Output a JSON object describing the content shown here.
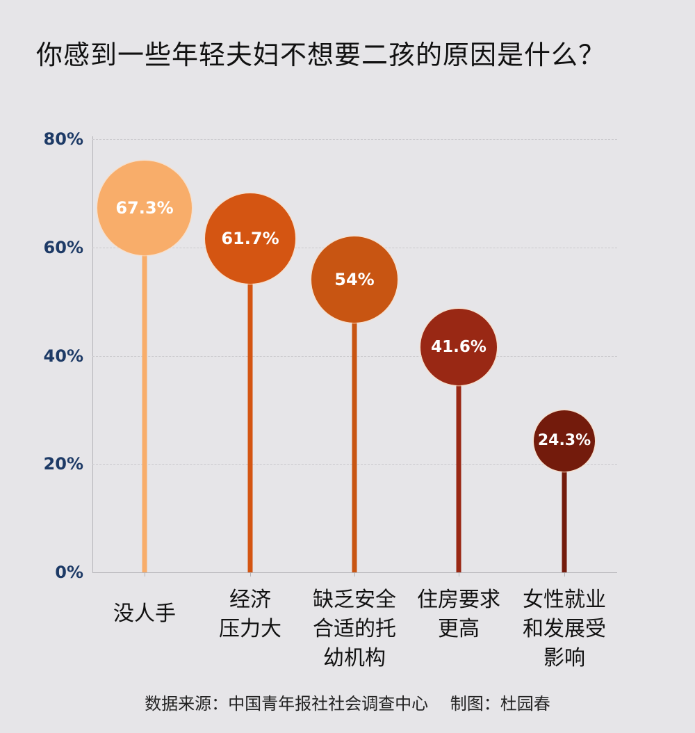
{
  "title": "你感到一些年轻夫妇不想要二孩的原因是什么？",
  "y_axis": {
    "ticks": [
      {
        "label": "80%",
        "value": 80
      },
      {
        "label": "60%",
        "value": 60
      },
      {
        "label": "40%",
        "value": 40
      },
      {
        "label": "20%",
        "value": 20
      },
      {
        "label": "0%",
        "value": 0
      }
    ]
  },
  "items": [
    {
      "label_lines": [
        "没人手"
      ],
      "value_label": "67.3%",
      "value": 67.3,
      "color": "#f8ad6a"
    },
    {
      "label_lines": [
        "经济",
        "压力大"
      ],
      "value_label": "61.7%",
      "value": 61.7,
      "color": "#d45512"
    },
    {
      "label_lines": [
        "缺乏安全",
        "合适的托",
        "幼机构"
      ],
      "value_label": "54%",
      "value": 54,
      "color": "#c85512"
    },
    {
      "label_lines": [
        "住房要求",
        "更高"
      ],
      "value_label": "41.6%",
      "value": 41.6,
      "color": "#992814"
    },
    {
      "label_lines": [
        "女性就业",
        "和发展受",
        "影响"
      ],
      "value_label": "24.3%",
      "value": 24.3,
      "color": "#731b0c"
    }
  ],
  "source": "数据来源：中国青年报社社会调查中心　 制图：杜园春",
  "chart_data": {
    "type": "lollipop",
    "title": "你感到一些年轻夫妇不想要二孩的原因是什么？",
    "categories": [
      "没人手",
      "经济压力大",
      "缺乏安全合适的托幼机构",
      "住房要求更高",
      "女性就业和发展受影响"
    ],
    "values": [
      67.3,
      61.7,
      54,
      41.6,
      24.3
    ],
    "value_labels": [
      "67.3%",
      "61.7%",
      "54%",
      "41.6%",
      "24.3%"
    ],
    "colors": [
      "#f8ad6a",
      "#d45512",
      "#c85512",
      "#992814",
      "#731b0c"
    ],
    "xlabel": "",
    "ylabel": "",
    "ylim": [
      0,
      80
    ],
    "yticks": [
      "0%",
      "20%",
      "40%",
      "60%",
      "80%"
    ],
    "grid": true,
    "legend": "none",
    "footnote": "数据来源：中国青年报社社会调查中心　 制图：杜园春"
  }
}
